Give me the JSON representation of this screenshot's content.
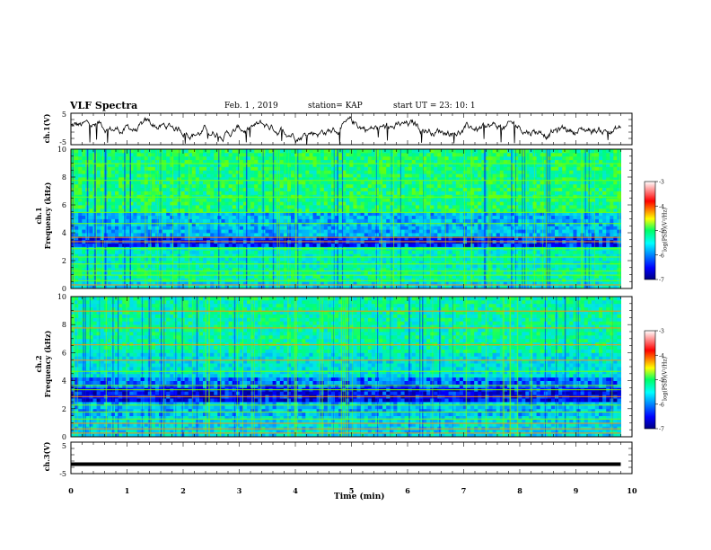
{
  "header": {
    "title": "VLF Spectra",
    "date": "Feb. 1 , 2019",
    "station": "station= KAP",
    "start": "start  UT =   23: 10: 1"
  },
  "chart_data": [
    {
      "type": "line",
      "panel": "ch1-waveform",
      "ylabel": "ch.1(V)",
      "ylim": [
        -5,
        5
      ],
      "yticks": [
        "5",
        "-5"
      ],
      "xlim": [
        0,
        10
      ],
      "note_series": "noisy trace near 0 V, spans 0 to 9.8 min"
    },
    {
      "type": "heatmap",
      "panel": "ch1-spectrogram",
      "ylabel": "ch.1\nFrequency (kHz)",
      "ylabel_line1": "ch.1",
      "ylabel_line2": "Frequency (kHz)",
      "ylim": [
        0,
        10
      ],
      "yticks": [
        "0",
        "2",
        "4",
        "6",
        "8",
        "10"
      ],
      "xlim": [
        0,
        10
      ],
      "data_xmax": 9.8,
      "colorbar": {
        "label": "log(PSD)(V²/Hz)",
        "range": [
          -7,
          -3
        ],
        "ticks": [
          "-3",
          "-4",
          "-5",
          "-6",
          "-7"
        ]
      }
    },
    {
      "type": "heatmap",
      "panel": "ch2-spectrogram",
      "ylabel_line1": "ch.2",
      "ylabel_line2": "Frequency (kHz)",
      "ylim": [
        0,
        10
      ],
      "yticks": [
        "0",
        "2",
        "4",
        "6",
        "8",
        "10"
      ],
      "xlim": [
        0,
        10
      ],
      "data_xmax": 9.8,
      "colorbar": {
        "label": "log(PSD)(V²/Hz)",
        "range": [
          -7,
          -3
        ],
        "ticks": [
          "-3",
          "-4",
          "-5",
          "-6",
          "-7"
        ]
      }
    },
    {
      "type": "line",
      "panel": "ch3-waveform",
      "ylabel": "ch.3(V)",
      "ylim": [
        -5,
        5
      ],
      "yticks": [
        "5",
        "-5"
      ],
      "xlim": [
        0,
        10
      ],
      "value": -2,
      "xlabel": "Time  (min)",
      "xticks": [
        "0",
        "1",
        "2",
        "3",
        "4",
        "5",
        "6",
        "7",
        "8",
        "9",
        "10"
      ]
    }
  ]
}
